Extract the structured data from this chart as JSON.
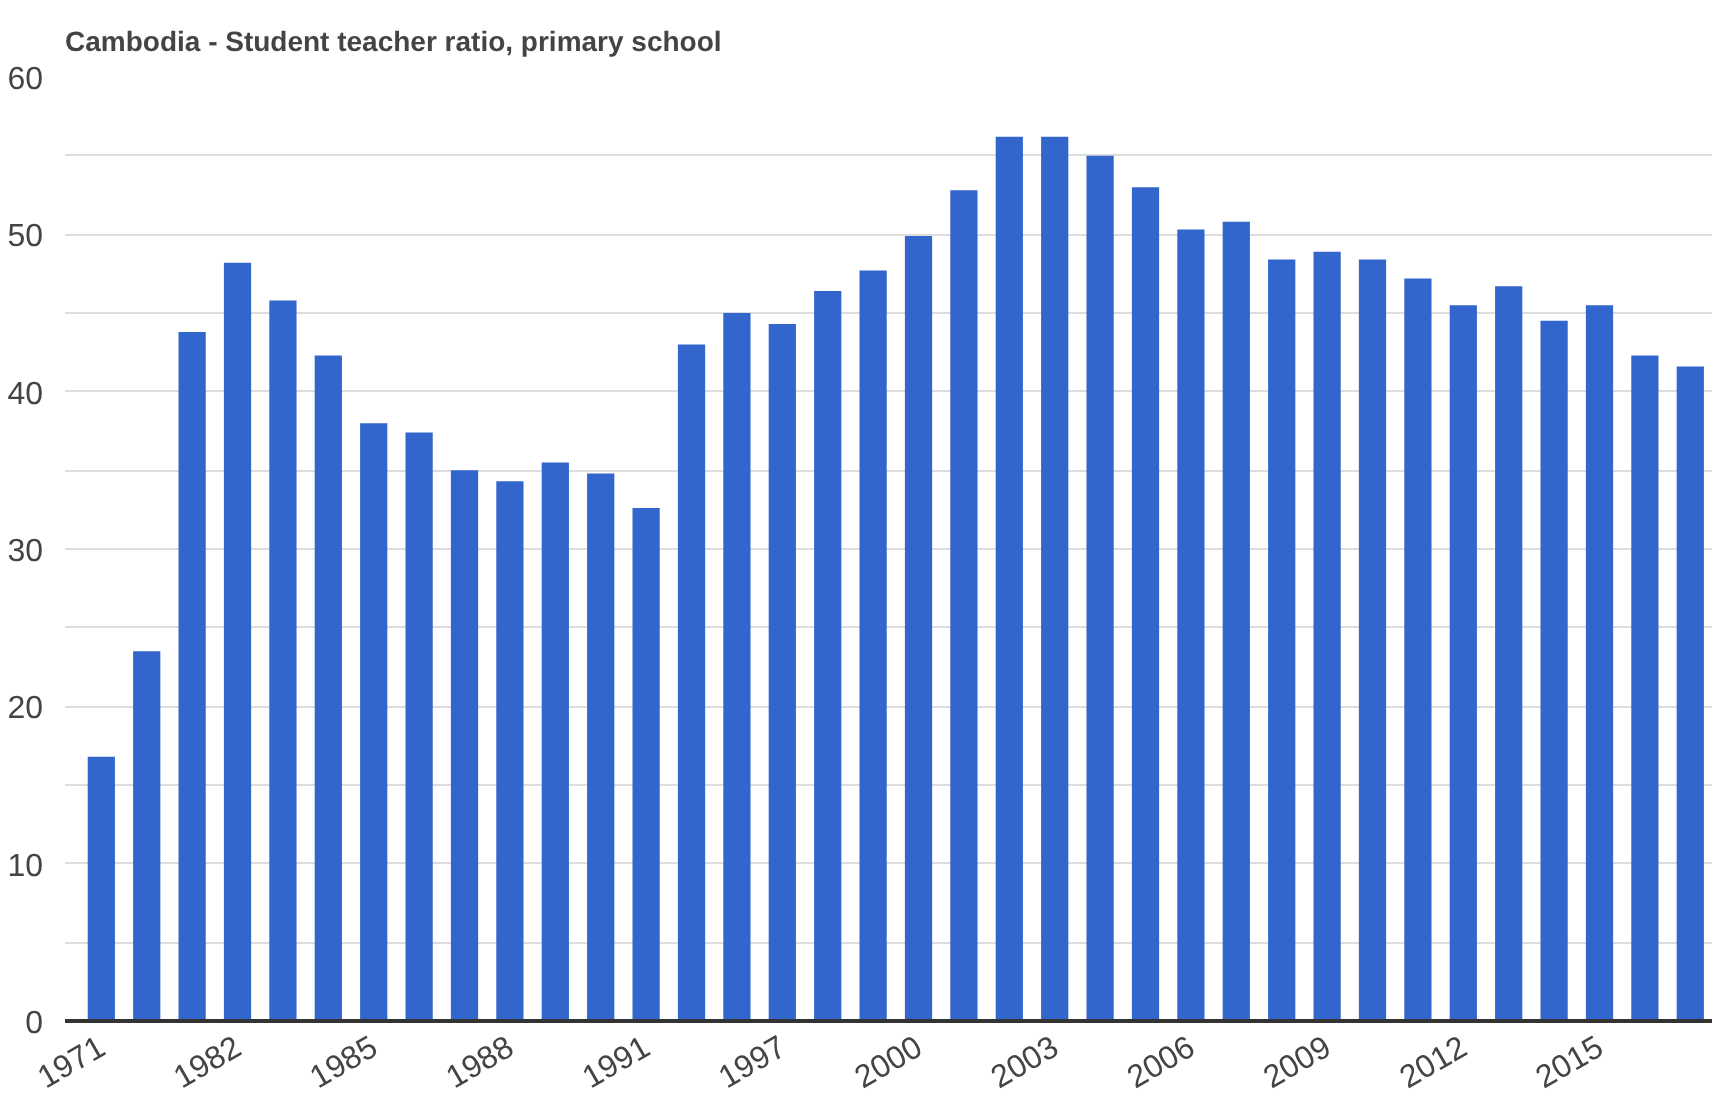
{
  "chart_data": {
    "type": "bar",
    "title": "Cambodia - Student teacher ratio, primary school",
    "categories": [
      "1971",
      null,
      null,
      "1982",
      null,
      null,
      "1985",
      null,
      null,
      "1988",
      null,
      null,
      "1991",
      null,
      null,
      "1997",
      null,
      null,
      "2000",
      null,
      null,
      "2003",
      null,
      null,
      "2006",
      null,
      null,
      "2009",
      null,
      null,
      "2012",
      null,
      null,
      "2015",
      null,
      null
    ],
    "values": [
      16.8,
      23.5,
      43.8,
      48.2,
      45.8,
      42.3,
      38.0,
      37.4,
      35.0,
      34.3,
      35.5,
      34.8,
      32.6,
      43.0,
      45.0,
      44.3,
      46.4,
      47.7,
      49.9,
      52.8,
      56.2,
      56.2,
      55.0,
      53.0,
      50.3,
      50.8,
      48.4,
      48.9,
      48.4,
      47.2,
      45.5,
      46.7,
      44.5,
      45.5,
      42.3,
      41.6
    ],
    "color": "#3366cc",
    "ylim": [
      0,
      60
    ],
    "yticks": [
      0,
      {
        "value": 5,
        "label": null
      },
      10,
      {
        "value": 15,
        "label": null
      },
      20,
      {
        "value": 25,
        "label": null
      },
      30,
      {
        "value": 35,
        "label": null
      },
      40,
      {
        "value": 45,
        "label": null
      },
      50,
      {
        "value": 55,
        "label": null
      },
      60
    ],
    "grid": "y"
  }
}
